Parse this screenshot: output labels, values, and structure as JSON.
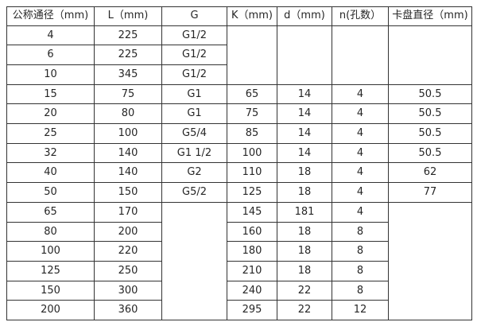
{
  "table": {
    "headers": [
      "公称通径（mm)",
      "L（mm)",
      "G",
      "K（mm)",
      "d（mm)",
      "n(孔数）",
      "卡盘直径（mm)"
    ],
    "rows": [
      [
        "4",
        "225",
        "G1/2",
        {
          "t": "",
          "rs": 3
        },
        {
          "t": "",
          "rs": 3
        },
        {
          "t": "",
          "rs": 3
        },
        {
          "t": "",
          "rs": 3
        }
      ],
      [
        "6",
        "225",
        "G1/2",
        null,
        null,
        null,
        null
      ],
      [
        "10",
        "345",
        "G1/2",
        null,
        null,
        null,
        null
      ],
      [
        "15",
        "75",
        "G1",
        "65",
        "14",
        "4",
        "50.5"
      ],
      [
        "20",
        "80",
        "G1",
        "75",
        "14",
        "4",
        "50.5"
      ],
      [
        "25",
        "100",
        "G5/4",
        "85",
        "14",
        "4",
        "50.5"
      ],
      [
        "32",
        "140",
        "G1 1/2",
        "100",
        "14",
        "4",
        "50.5"
      ],
      [
        "40",
        "140",
        "G2",
        "110",
        "18",
        "4",
        "62"
      ],
      [
        "50",
        "150",
        "G5/2",
        "125",
        "18",
        "4",
        "77"
      ],
      [
        "65",
        "170",
        {
          "t": "",
          "rs": 6
        },
        "145",
        "181",
        "4",
        {
          "t": "",
          "rs": 6
        }
      ],
      [
        "80",
        "200",
        null,
        "160",
        "18",
        "8",
        null
      ],
      [
        "100",
        "220",
        null,
        "180",
        "18",
        "8",
        null
      ],
      [
        "125",
        "250",
        null,
        "210",
        "18",
        "8",
        null
      ],
      [
        "150",
        "300",
        null,
        "240",
        "22",
        "8",
        null
      ],
      [
        "200",
        "360",
        null,
        "295",
        "22",
        "12",
        null
      ]
    ]
  }
}
